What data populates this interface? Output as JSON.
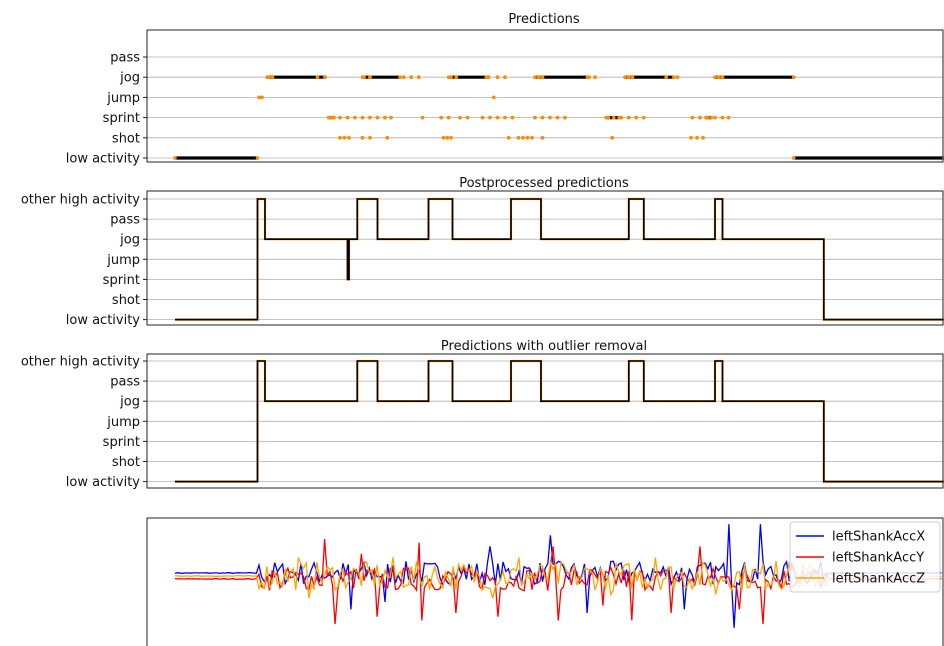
{
  "chart_data": [
    {
      "type": "scatter",
      "title": "Predictions",
      "categories": [
        "low activity",
        "shot",
        "sprint",
        "jump",
        "jog",
        "pass"
      ],
      "xlim": [
        0,
        100
      ],
      "series": [
        {
          "color": "#000000",
          "segments": [
            {
              "x0": 2,
              "x1": 13,
              "y": "low activity"
            },
            {
              "x0": 14.3,
              "x1": 22,
              "y": "jog"
            },
            {
              "x0": 27,
              "x1": 32,
              "y": "jog"
            },
            {
              "x0": 38.5,
              "x1": 43.5,
              "y": "jog"
            },
            {
              "x0": 50,
              "x1": 57,
              "y": "jog"
            },
            {
              "x0": 62,
              "x1": 68.5,
              "y": "jog"
            },
            {
              "x0": 74,
              "x1": 84.5,
              "y": "jog"
            },
            {
              "x0": 84.5,
              "x1": 104.5,
              "y": "low activity"
            },
            {
              "x0": 22.5,
              "x1": 23,
              "y": "sprint"
            },
            {
              "x0": 59.5,
              "x1": 61.2,
              "y": "sprint"
            },
            {
              "x0": 72.8,
              "x1": 73.5,
              "y": "sprint"
            }
          ]
        },
        {
          "color": "#ff8c00",
          "points": [
            {
              "x": 13.2,
              "y": "jump"
            },
            {
              "x": 13.6,
              "y": "jump"
            },
            {
              "x": 44.5,
              "y": "jump"
            },
            {
              "x": 14.5,
              "y": "jog"
            },
            {
              "x": 15.0,
              "y": "jog"
            },
            {
              "x": 21.0,
              "y": "jog"
            },
            {
              "x": 22.0,
              "y": "jog"
            },
            {
              "x": 27.2,
              "y": "jog"
            },
            {
              "x": 28.0,
              "y": "jog"
            },
            {
              "x": 32.5,
              "y": "jog"
            },
            {
              "x": 33.5,
              "y": "jog"
            },
            {
              "x": 34.5,
              "y": "jog"
            },
            {
              "x": 38.8,
              "y": "jog"
            },
            {
              "x": 39.5,
              "y": "jog"
            },
            {
              "x": 43.8,
              "y": "jog"
            },
            {
              "x": 45.0,
              "y": "jog"
            },
            {
              "x": 46.0,
              "y": "jog"
            },
            {
              "x": 50.5,
              "y": "jog"
            },
            {
              "x": 51.0,
              "y": "jog"
            },
            {
              "x": 57.2,
              "y": "jog"
            },
            {
              "x": 58.0,
              "y": "jog"
            },
            {
              "x": 62.5,
              "y": "jog"
            },
            {
              "x": 63.0,
              "y": "jog"
            },
            {
              "x": 67.5,
              "y": "jog"
            },
            {
              "x": 69.0,
              "y": "jog"
            },
            {
              "x": 74.5,
              "y": "jog"
            },
            {
              "x": 75.0,
              "y": "jog"
            },
            {
              "x": 22.6,
              "y": "sprint"
            },
            {
              "x": 23.2,
              "y": "sprint"
            },
            {
              "x": 24.0,
              "y": "sprint"
            },
            {
              "x": 25.0,
              "y": "sprint"
            },
            {
              "x": 26.0,
              "y": "sprint"
            },
            {
              "x": 27.0,
              "y": "sprint"
            },
            {
              "x": 28.0,
              "y": "sprint"
            },
            {
              "x": 29.0,
              "y": "sprint"
            },
            {
              "x": 30.0,
              "y": "sprint"
            },
            {
              "x": 30.8,
              "y": "sprint"
            },
            {
              "x": 35.0,
              "y": "sprint"
            },
            {
              "x": 37.5,
              "y": "sprint"
            },
            {
              "x": 38.5,
              "y": "sprint"
            },
            {
              "x": 40.0,
              "y": "sprint"
            },
            {
              "x": 41.0,
              "y": "sprint"
            },
            {
              "x": 43.0,
              "y": "sprint"
            },
            {
              "x": 44.0,
              "y": "sprint"
            },
            {
              "x": 45.0,
              "y": "sprint"
            },
            {
              "x": 46.0,
              "y": "sprint"
            },
            {
              "x": 47.0,
              "y": "sprint"
            },
            {
              "x": 50.0,
              "y": "sprint"
            },
            {
              "x": 51.0,
              "y": "sprint"
            },
            {
              "x": 52.0,
              "y": "sprint"
            },
            {
              "x": 53.0,
              "y": "sprint"
            },
            {
              "x": 54.0,
              "y": "sprint"
            },
            {
              "x": 59.8,
              "y": "sprint"
            },
            {
              "x": 60.5,
              "y": "sprint"
            },
            {
              "x": 61.5,
              "y": "sprint"
            },
            {
              "x": 62.5,
              "y": "sprint"
            },
            {
              "x": 63.5,
              "y": "sprint"
            },
            {
              "x": 64.5,
              "y": "sprint"
            },
            {
              "x": 71.0,
              "y": "sprint"
            },
            {
              "x": 72.0,
              "y": "sprint"
            },
            {
              "x": 73.0,
              "y": "sprint"
            },
            {
              "x": 74.0,
              "y": "sprint"
            },
            {
              "x": 75.0,
              "y": "sprint"
            },
            {
              "x": 75.8,
              "y": "sprint"
            },
            {
              "x": 24.0,
              "y": "shot"
            },
            {
              "x": 24.6,
              "y": "shot"
            },
            {
              "x": 25.2,
              "y": "shot"
            },
            {
              "x": 27.0,
              "y": "shot"
            },
            {
              "x": 28.0,
              "y": "shot"
            },
            {
              "x": 30.3,
              "y": "shot"
            },
            {
              "x": 37.8,
              "y": "shot"
            },
            {
              "x": 38.3,
              "y": "shot"
            },
            {
              "x": 38.8,
              "y": "shot"
            },
            {
              "x": 46.5,
              "y": "shot"
            },
            {
              "x": 47.8,
              "y": "shot"
            },
            {
              "x": 48.4,
              "y": "shot"
            },
            {
              "x": 49.0,
              "y": "shot"
            },
            {
              "x": 49.6,
              "y": "shot"
            },
            {
              "x": 51.0,
              "y": "shot"
            },
            {
              "x": 60.3,
              "y": "shot"
            },
            {
              "x": 70.8,
              "y": "shot"
            },
            {
              "x": 71.6,
              "y": "shot"
            },
            {
              "x": 72.4,
              "y": "shot"
            }
          ]
        }
      ]
    },
    {
      "type": "line",
      "title": "Postprocessed predictions",
      "categories": [
        "low activity",
        "shot",
        "sprint",
        "jump",
        "jog",
        "pass",
        "other high activity"
      ],
      "xlim": [
        0,
        100
      ],
      "series": [
        {
          "color": "#000000",
          "x": [
            2,
            13,
            13,
            14,
            14,
            14.8,
            14.8,
            25,
            25,
            25.2,
            25.2,
            25.4,
            25.4,
            26.3,
            26.3,
            29,
            29,
            35.8,
            35.8,
            39,
            39,
            46.8,
            46.8,
            50.8,
            50.8,
            62.5,
            62.5,
            64.5,
            64.5,
            74,
            74,
            75,
            75,
            88.5,
            88.5,
            104.5
          ],
          "y": [
            "low activity",
            "low activity",
            "other high activity",
            "other high activity",
            "jog",
            "jog",
            "jog",
            "jog",
            "sprint",
            "sprint",
            "jog",
            "jog",
            "jog",
            "jog",
            "other high activity",
            "other high activity",
            "jog",
            "jog",
            "other high activity",
            "other high activity",
            "jog",
            "jog",
            "other high activity",
            "other high activity",
            "jog",
            "jog",
            "other high activity",
            "other high activity",
            "jog",
            "jog",
            "other high activity",
            "other high activity",
            "jog",
            "jog",
            "low activity",
            "low activity"
          ]
        }
      ]
    },
    {
      "type": "line",
      "title": "Predictions with outlier removal",
      "categories": [
        "low activity",
        "shot",
        "sprint",
        "jump",
        "jog",
        "pass",
        "other high activity"
      ],
      "xlim": [
        0,
        100
      ],
      "series": [
        {
          "color": "#000000",
          "x": [
            2,
            13,
            13,
            14,
            14,
            26.3,
            26.3,
            29,
            29,
            35.8,
            35.8,
            39,
            39,
            46.8,
            46.8,
            50.8,
            50.8,
            62.5,
            62.5,
            64.5,
            64.5,
            74,
            74,
            75,
            75,
            88.5,
            88.5,
            104.5
          ],
          "y": [
            "low activity",
            "low activity",
            "other high activity",
            "other high activity",
            "jog",
            "jog",
            "other high activity",
            "other high activity",
            "jog",
            "jog",
            "other high activity",
            "other high activity",
            "jog",
            "jog",
            "other high activity",
            "other high activity",
            "jog",
            "jog",
            "other high activity",
            "other high activity",
            "jog",
            "jog",
            "other high activity",
            "other high activity",
            "jog",
            "jog",
            "low activity",
            "low activity"
          ]
        }
      ]
    },
    {
      "type": "line",
      "title": "",
      "xlim": [
        0,
        100
      ],
      "ylim": [
        -8,
        8
      ],
      "active_range": [
        13,
        89
      ],
      "legend_position": "top-right",
      "series": [
        {
          "name": "leftShankAccX",
          "color": "#0000ff",
          "baseline": 0.4,
          "noise": 1.0,
          "spikes": [
            {
              "x": 25.5,
              "v": -4.5
            },
            {
              "x": 30,
              "v": -3.5
            },
            {
              "x": 44,
              "v": 4.0
            },
            {
              "x": 52,
              "v": 5.5
            },
            {
              "x": 57,
              "v": -5.0
            },
            {
              "x": 70,
              "v": -4.5
            },
            {
              "x": 76,
              "v": 7.0
            },
            {
              "x": 76.6,
              "v": -7.0
            },
            {
              "x": 80,
              "v": 7.0
            }
          ]
        },
        {
          "name": "leftShankAccY",
          "color": "#ff0000",
          "baseline": -0.4,
          "noise": 1.0,
          "spikes": [
            {
              "x": 22,
              "v": 5.0
            },
            {
              "x": 23.5,
              "v": -6.5
            },
            {
              "x": 27,
              "v": 3.0
            },
            {
              "x": 29,
              "v": -5.5
            },
            {
              "x": 34.5,
              "v": 4.5
            },
            {
              "x": 35,
              "v": -6.0
            },
            {
              "x": 39.5,
              "v": -5.0
            },
            {
              "x": 45,
              "v": -5.5
            },
            {
              "x": 52.5,
              "v": 4.0
            },
            {
              "x": 53,
              "v": -6.0
            },
            {
              "x": 59,
              "v": -4.0
            },
            {
              "x": 63,
              "v": -6.0
            },
            {
              "x": 68,
              "v": -5.0
            },
            {
              "x": 72,
              "v": 4.0
            },
            {
              "x": 77.2,
              "v": -4.5
            },
            {
              "x": 80.4,
              "v": -6.5
            }
          ]
        },
        {
          "name": "leftShankAccZ",
          "color": "#ffa500",
          "baseline": 0.0,
          "noise": 1.2,
          "spikes": [
            {
              "x": 18.5,
              "v": 2.5
            },
            {
              "x": 20,
              "v": -3.0
            },
            {
              "x": 31,
              "v": 2.5
            },
            {
              "x": 44.5,
              "v": -3.0
            },
            {
              "x": 48,
              "v": 2.5
            },
            {
              "x": 60,
              "v": -2.5
            },
            {
              "x": 66,
              "v": 2.5
            },
            {
              "x": 74,
              "v": -2.5
            },
            {
              "x": 82,
              "v": 2.0
            }
          ]
        }
      ]
    }
  ]
}
